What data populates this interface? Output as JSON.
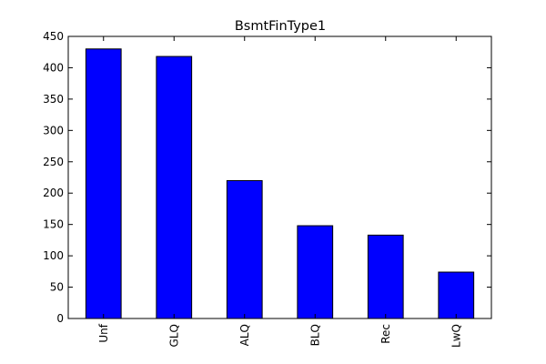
{
  "chart_data": {
    "type": "bar",
    "title": "BsmtFinType1",
    "xlabel": "",
    "ylabel": "",
    "categories": [
      "Unf",
      "GLQ",
      "ALQ",
      "BLQ",
      "Rec",
      "LwQ"
    ],
    "values": [
      430,
      418,
      220,
      148,
      133,
      74
    ],
    "ylim": [
      0,
      450
    ],
    "yticks": [
      0,
      50,
      100,
      150,
      200,
      250,
      300,
      350,
      400,
      450
    ],
    "bar_color": "#0000ff",
    "edge_color": "#000000",
    "grid": false,
    "legend": "none"
  }
}
